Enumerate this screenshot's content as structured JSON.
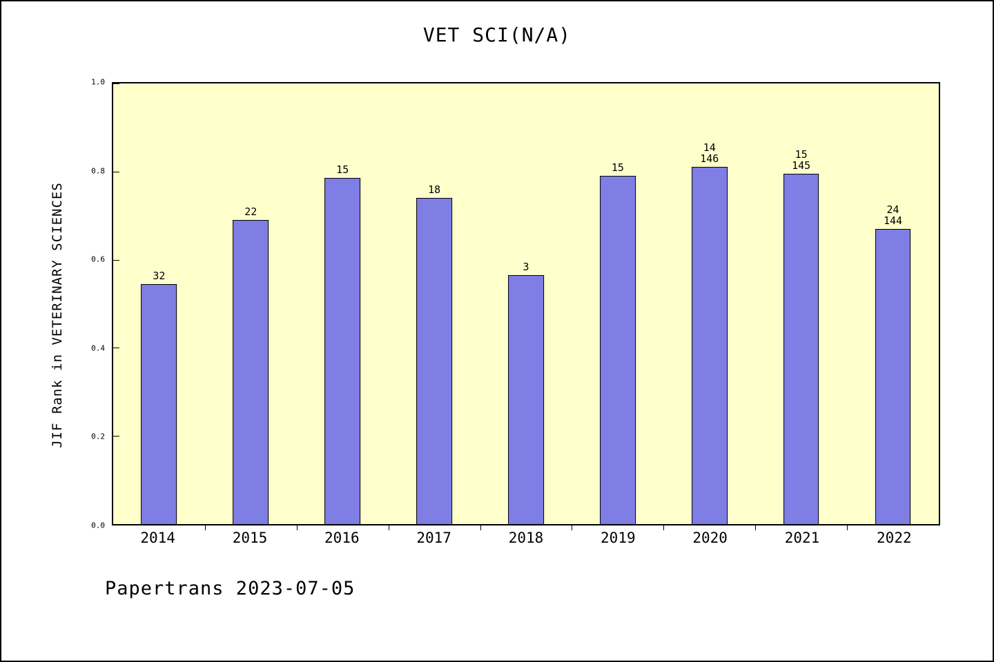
{
  "footer": {
    "text": "Papertrans 2023-07-05"
  },
  "colors": {
    "bar_fill": "#7e7ee4",
    "bar_border": "#000000",
    "plot_bg": "#ffffcc",
    "frame": "#000000"
  },
  "chart_data": {
    "type": "bar",
    "title": "VET SCI(N/A)",
    "xlabel": "",
    "ylabel": "JIF Rank in VETERINARY SCIENCES",
    "ylim": [
      0.0,
      1.0
    ],
    "yticks": [
      "0.0",
      "0.2",
      "0.4",
      "0.6",
      "0.8",
      "1.0"
    ],
    "grid": false,
    "legend": false,
    "categories": [
      "2014",
      "2015",
      "2016",
      "2017",
      "2018",
      "2019",
      "2020",
      "2021",
      "2022"
    ],
    "values": [
      0.545,
      0.69,
      0.785,
      0.74,
      0.565,
      0.79,
      0.81,
      0.795,
      0.67
    ],
    "bar_labels": [
      [
        "32"
      ],
      [
        "22"
      ],
      [
        "15"
      ],
      [
        "18"
      ],
      [
        "3"
      ],
      [
        "15"
      ],
      [
        "14",
        "146"
      ],
      [
        "15",
        "145"
      ],
      [
        "24",
        "144"
      ]
    ]
  }
}
